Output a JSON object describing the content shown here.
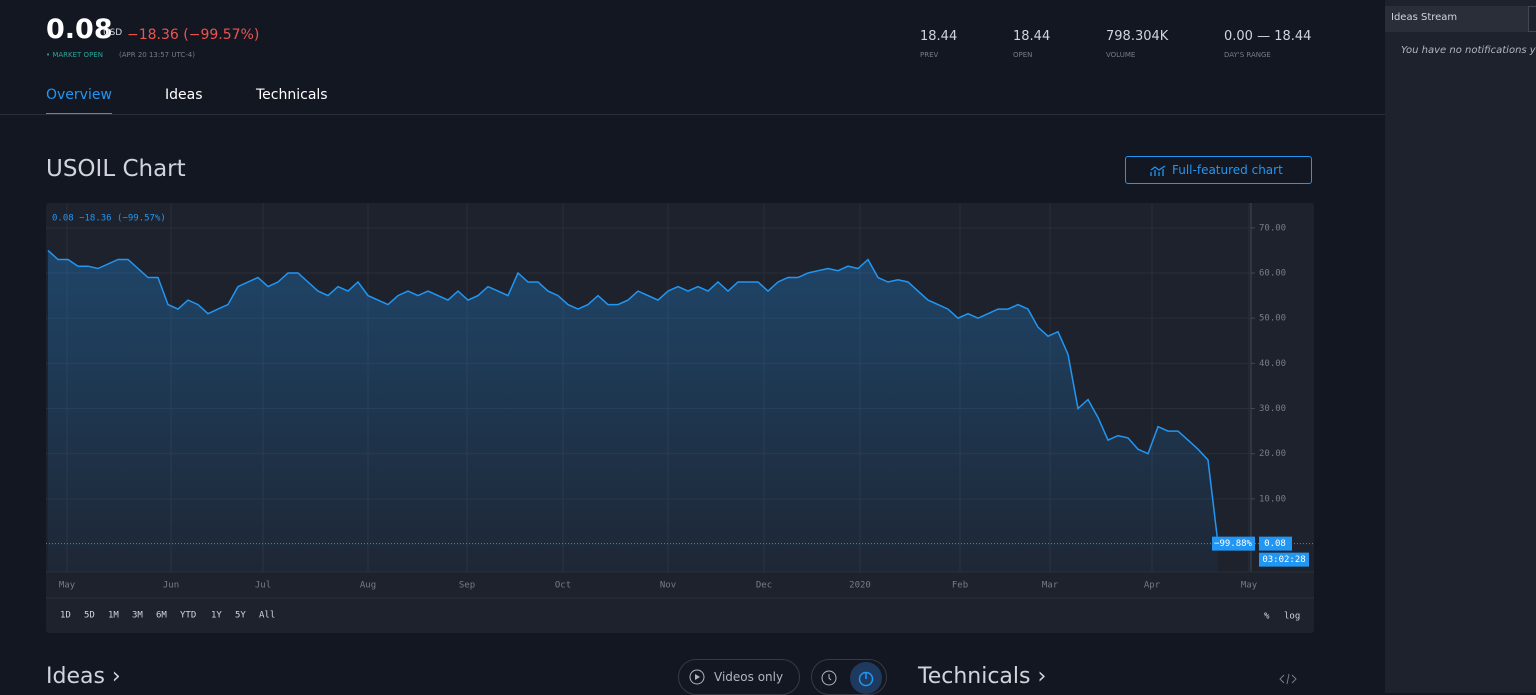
{
  "header": {
    "price": "0.08",
    "currency": "USD",
    "change": "−18.36 (−99.57%)",
    "status": "• MARKET OPEN",
    "time": "(APR 20 13:57 UTC-4)",
    "stats": [
      {
        "value": "18.44",
        "label": "PREV"
      },
      {
        "value": "18.44",
        "label": "OPEN"
      },
      {
        "value": "798.304K",
        "label": "VOLUME"
      },
      {
        "value": "0.00 — 18.44",
        "label": "DAY'S RANGE"
      }
    ]
  },
  "tabs": [
    "Overview",
    "Ideas",
    "Technicals"
  ],
  "section": {
    "title": "USOIL Chart",
    "button": "Full-featured chart"
  },
  "chart_data": {
    "type": "area",
    "legend": "0.08 −18.36 (−99.57%)",
    "color": "#2196f3",
    "values": [
      65,
      63,
      63,
      61.5,
      61.5,
      61,
      62,
      63,
      63,
      61,
      59,
      59,
      53,
      52,
      54,
      53,
      51,
      52,
      53,
      57,
      58,
      59,
      57,
      58,
      60,
      60,
      58,
      56,
      55,
      57,
      56,
      58,
      55,
      54,
      53,
      55,
      56,
      55,
      56,
      55,
      54,
      56,
      54,
      55,
      57,
      56,
      55,
      60,
      58,
      58,
      56,
      55,
      53,
      52,
      53,
      55,
      53,
      53,
      54,
      56,
      55,
      54,
      56,
      57,
      56,
      57,
      56,
      58,
      56,
      58,
      58,
      58,
      56,
      58,
      59,
      59,
      60,
      60.5,
      61,
      60.5,
      61.5,
      61,
      63,
      59,
      58,
      58.5,
      58,
      56,
      54,
      53,
      52,
      50,
      51,
      50,
      51,
      52,
      52,
      53,
      52,
      48,
      46,
      47,
      42,
      30,
      32,
      28,
      23,
      24,
      23.5,
      21,
      20,
      26,
      25,
      25,
      23,
      21,
      18.6,
      0.08
    ],
    "xlim": [
      0,
      121
    ],
    "xticks": [
      {
        "value": 1.9,
        "label": "May"
      },
      {
        "value": 12.3,
        "label": "Jun"
      },
      {
        "value": 21.5,
        "label": "Jul"
      },
      {
        "value": 32,
        "label": "Aug"
      },
      {
        "value": 41.9,
        "label": "Sep"
      },
      {
        "value": 51.5,
        "label": "Oct"
      },
      {
        "value": 62,
        "label": "Nov"
      },
      {
        "value": 71.6,
        "label": "Dec"
      },
      {
        "value": 81.2,
        "label": "2020"
      },
      {
        "value": 91.2,
        "label": "Feb"
      },
      {
        "value": 100.2,
        "label": "Mar"
      },
      {
        "value": 110.4,
        "label": "Apr"
      },
      {
        "value": 120.1,
        "label": "May"
      }
    ],
    "ylim": [
      -6.2,
      75.5
    ],
    "yticks": [
      {
        "value": 10,
        "label": "10.00"
      },
      {
        "value": 20,
        "label": "20.00"
      },
      {
        "value": 30,
        "label": "30.00"
      },
      {
        "value": 40,
        "label": "40.00"
      },
      {
        "value": 50,
        "label": "50.00"
      },
      {
        "value": 60,
        "label": "60.00"
      },
      {
        "value": 70,
        "label": "70.00"
      }
    ],
    "grid": true,
    "last_label": "0.08",
    "last_change": "−99.88%",
    "countdown": "03:02:28"
  },
  "ranges": [
    "1D",
    "5D",
    "1M",
    "3M",
    "6M",
    "YTD",
    "1Y",
    "5Y",
    "All"
  ],
  "scale_options": [
    "%",
    "log"
  ],
  "bottom": {
    "ideas": "Ideas ›",
    "videos": "Videos only",
    "technicals": "Technicals ›"
  },
  "sidebar": {
    "title": "Ideas Stream",
    "message": "You have no notifications yet."
  }
}
